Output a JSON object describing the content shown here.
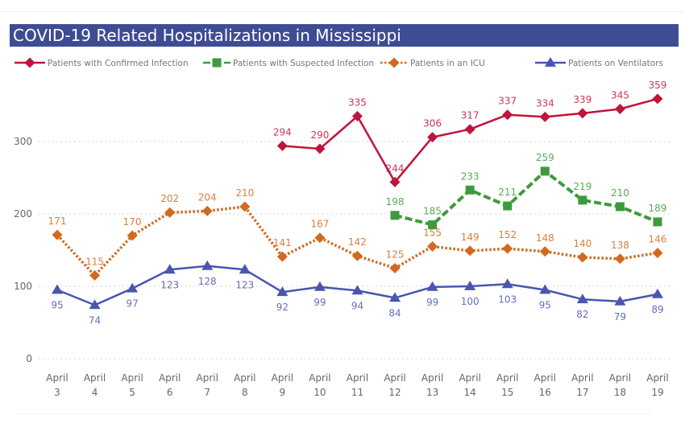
{
  "chart_data": {
    "type": "line",
    "title": "COVID-19 Related Hospitalizations in Mississippi",
    "xlabel": "",
    "ylabel": "",
    "ylim": [
      0,
      380
    ],
    "yticks": [
      0,
      100,
      200,
      300
    ],
    "grid": "horizontal-dotted",
    "legend_position": "top",
    "categories": [
      [
        "April",
        "3"
      ],
      [
        "April",
        "4"
      ],
      [
        "April",
        "5"
      ],
      [
        "April",
        "6"
      ],
      [
        "April",
        "7"
      ],
      [
        "April",
        "8"
      ],
      [
        "April",
        "9"
      ],
      [
        "April",
        "10"
      ],
      [
        "April",
        "11"
      ],
      [
        "April",
        "12"
      ],
      [
        "April",
        "13"
      ],
      [
        "April",
        "14"
      ],
      [
        "April",
        "15"
      ],
      [
        "April",
        "16"
      ],
      [
        "April",
        "17"
      ],
      [
        "April",
        "18"
      ],
      [
        "April",
        "19"
      ]
    ],
    "series": [
      {
        "name": "Patients with Confirmed Infection",
        "color": "#c0143c",
        "marker": "diamond",
        "dash": "solid",
        "label_pos": "above",
        "values": [
          null,
          null,
          null,
          null,
          null,
          null,
          294,
          290,
          335,
          244,
          306,
          317,
          337,
          334,
          339,
          345,
          359
        ]
      },
      {
        "name": "Patients with Suspected Infection",
        "color": "#3d9b3d",
        "marker": "square",
        "dash": "dashed",
        "label_pos": "above",
        "values": [
          null,
          null,
          null,
          null,
          null,
          null,
          null,
          null,
          null,
          198,
          185,
          233,
          211,
          259,
          219,
          210,
          189
        ]
      },
      {
        "name": "Patients in an ICU",
        "color": "#d2691e",
        "marker": "diamond",
        "dash": "dotted",
        "label_pos": "above",
        "values": [
          171,
          115,
          170,
          202,
          204,
          210,
          141,
          167,
          142,
          125,
          155,
          149,
          152,
          148,
          140,
          138,
          146
        ]
      },
      {
        "name": "Patients on Ventilators",
        "color": "#4a55b0",
        "marker": "triangle",
        "dash": "solid",
        "label_pos": "below",
        "values": [
          95,
          74,
          97,
          123,
          128,
          123,
          92,
          99,
          94,
          84,
          99,
          100,
          103,
          95,
          82,
          79,
          89
        ]
      }
    ]
  }
}
